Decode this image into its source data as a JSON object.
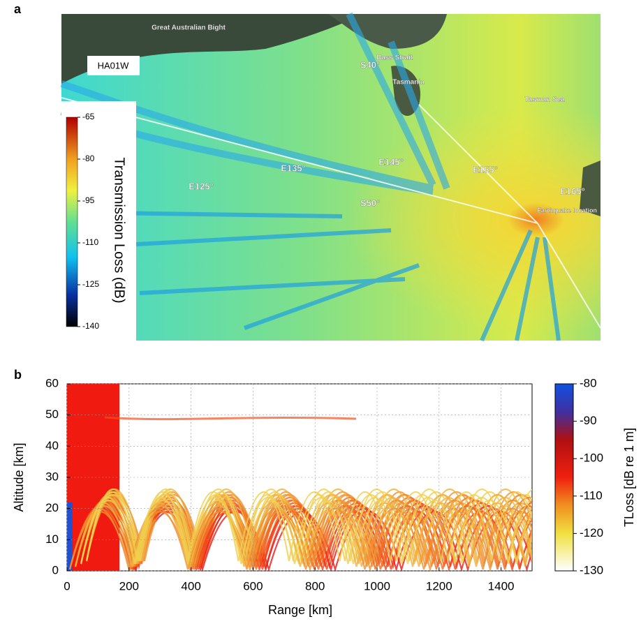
{
  "chart_data": [
    {
      "type": "map",
      "panel_label": "a",
      "station": "HA01W",
      "annotations": [
        "Great Australian Bight",
        "Bass Strait",
        "S40°",
        "Tasmania",
        "Tasman Sea",
        "E125°",
        "E135°",
        "E145°",
        "E155°",
        "E165°",
        "S50°",
        "Earthquake location"
      ],
      "colorbar": {
        "label": "Transmission Loss (dB)",
        "lim": [
          -140,
          -65
        ],
        "ticks": [
          -65,
          -80,
          -95,
          -110,
          -125,
          -140
        ]
      }
    },
    {
      "type": "heatmap",
      "panel_label": "b",
      "xlabel": "Range [km]",
      "ylabel": "Altitude [km]",
      "xlim": [
        0,
        1500
      ],
      "xticks": [
        0,
        200,
        400,
        600,
        800,
        1000,
        1200,
        1400
      ],
      "ylim": [
        0,
        60
      ],
      "yticks": [
        0,
        10,
        20,
        30,
        40,
        50,
        60
      ],
      "grid": true,
      "colorbar": {
        "label": "TLoss [dB re 1 m]",
        "lim": [
          -130,
          -80
        ],
        "ticks": [
          -80,
          -90,
          -100,
          -110,
          -120,
          -130
        ]
      }
    }
  ]
}
